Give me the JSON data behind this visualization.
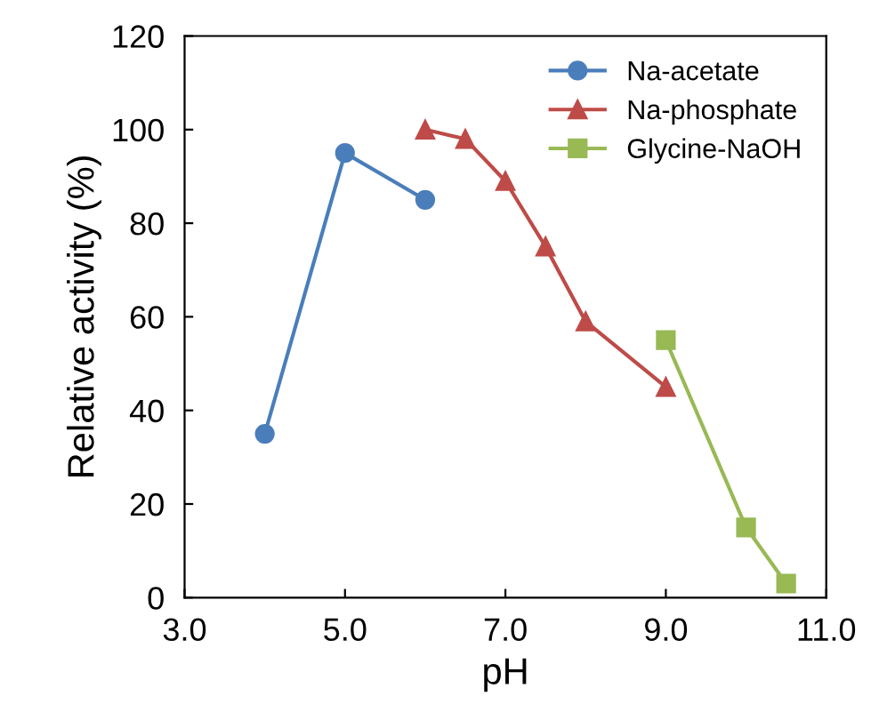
{
  "chart_data": {
    "type": "line",
    "xlabel": "pH",
    "ylabel": "Relative activity (%)",
    "xlim": [
      3,
      11
    ],
    "xticks": [
      {
        "value": 3,
        "label": "3.0"
      },
      {
        "value": 5,
        "label": "5.0"
      },
      {
        "value": 7,
        "label": "7.0"
      },
      {
        "value": 9,
        "label": "9.0"
      },
      {
        "value": 11,
        "label": "11.0"
      }
    ],
    "ylim": [
      0,
      120
    ],
    "yticks": [
      0,
      20,
      40,
      60,
      80,
      100,
      120
    ],
    "grid": false,
    "legend": "top right",
    "line_style": "solid",
    "series": [
      {
        "name": "Na-acetate",
        "color": "#4a7ebb",
        "marker": "circle",
        "x": [
          4,
          5,
          6
        ],
        "values": [
          35,
          95,
          85
        ]
      },
      {
        "name": "Na-phosphate",
        "color": "#be4b48",
        "marker": "triangle",
        "x": [
          6,
          6.5,
          7,
          7.5,
          8,
          9
        ],
        "values": [
          100,
          98,
          89,
          75,
          59,
          45
        ]
      },
      {
        "name": "Glycine-NaOH",
        "color": "#98b954",
        "marker": "square",
        "x": [
          9,
          10,
          10.5
        ],
        "values": [
          55,
          15,
          3
        ]
      }
    ]
  }
}
